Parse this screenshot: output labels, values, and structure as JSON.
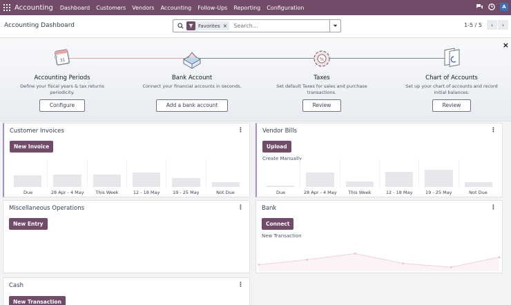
{
  "navbar": {
    "app_name": "Accounting",
    "menu": [
      "Dashboard",
      "Customers",
      "Vendors",
      "Accounting",
      "Follow-Ups",
      "Reporting",
      "Configuration"
    ],
    "avatar_letter": "A",
    "icons": [
      "apps-grid-icon",
      "chat-icon",
      "clock-icon"
    ],
    "color": "#714b67"
  },
  "control": {
    "breadcrumb": "Accounting Dashboard",
    "facet_label": "Favorites",
    "facet_close": "×",
    "search_placeholder": "Search...",
    "pager": "1-5 / 5",
    "pager_prev": "‹",
    "pager_next": "›"
  },
  "onboarding": {
    "close": "×",
    "steps": [
      {
        "title": "Accounting Periods",
        "desc": "Define your fiscal years & tax returns periodicity.",
        "button": "Configure"
      },
      {
        "title": "Bank Account",
        "desc": "Connect your financial accounts in seconds.",
        "button": "Add a bank account"
      },
      {
        "title": "Taxes",
        "desc": "Set default Taxes for sales and purchase transactions.",
        "button": "Review"
      },
      {
        "title": "Chart of Accounts",
        "desc": "Set up your chart of accounts and record initial balances.",
        "button": "Review"
      }
    ]
  },
  "cards": {
    "customer_invoices": {
      "title": "Customer Invoices",
      "button": "New Invoice",
      "chart": {
        "labels": [
          "Due",
          "28 Apr - 4 May",
          "This Week",
          "12 - 18 May",
          "19 - 25 May",
          "Not Due"
        ],
        "values": [
          0.45,
          0.48,
          0.47,
          0.55,
          0.35,
          0.18
        ]
      }
    },
    "vendor_bills": {
      "title": "Vendor Bills",
      "button": "Upload",
      "link": "Create Manually",
      "chart": {
        "labels": [
          "Due",
          "28 Apr - 4 May",
          "This Week",
          "12 - 18 May",
          "19 - 25 May",
          "Not Due"
        ],
        "values": [
          0.05,
          0.55,
          0.22,
          0.58,
          0.65,
          0.18
        ]
      }
    },
    "misc": {
      "title": "Miscellaneous Operations",
      "button": "New Entry"
    },
    "bank": {
      "title": "Bank",
      "button": "Connect",
      "link": "New Transaction",
      "line_values": [
        0.15,
        0.35,
        0.6,
        0.2,
        0.05,
        0.45
      ]
    },
    "cash": {
      "title": "Cash",
      "button": "New Transaction"
    }
  },
  "kebab": "⋮"
}
